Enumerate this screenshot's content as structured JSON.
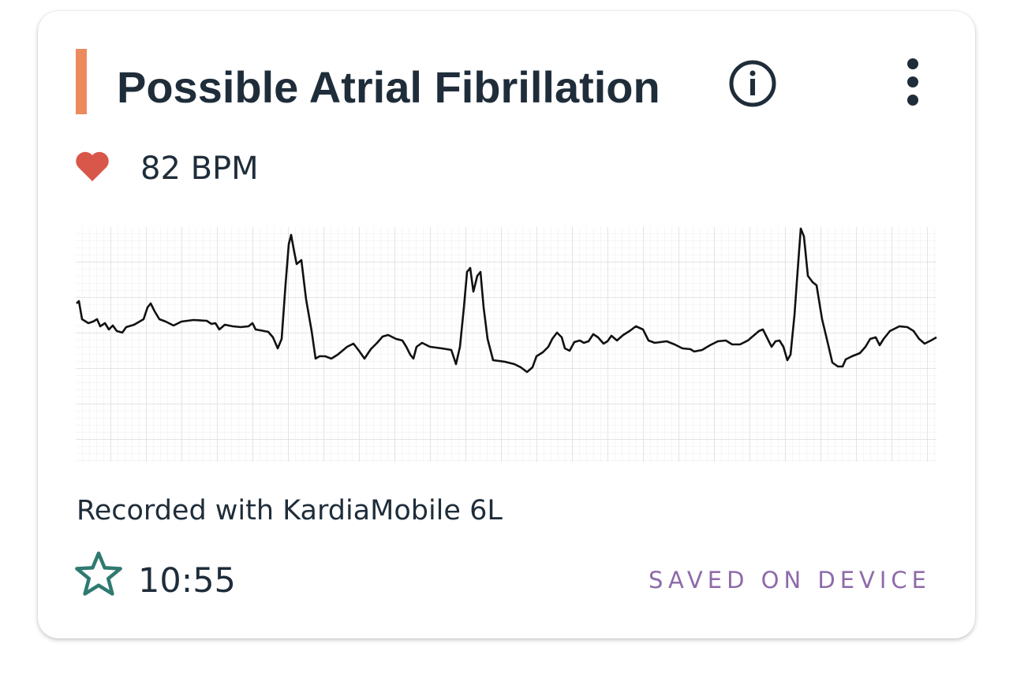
{
  "card": {
    "title": "Possible Atrial Fibrillation",
    "heart_rate": "82 BPM",
    "device": "Recorded with KardiaMobile 6L",
    "time": "10:55",
    "status": "SAVED ON DEVICE"
  }
}
